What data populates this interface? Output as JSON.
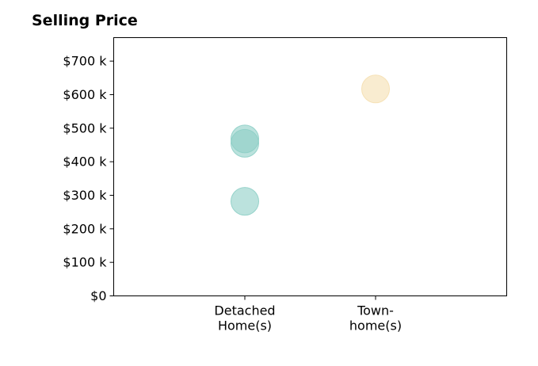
{
  "chart_data": {
    "type": "scatter",
    "title": "Selling Price",
    "categories": [
      "Detached\nHome(s)",
      "Town-\nhome(s)"
    ],
    "y_ticks": [
      {
        "value": 0,
        "label": "$0"
      },
      {
        "value": 100000,
        "label": "$100 k"
      },
      {
        "value": 200000,
        "label": "$200 k"
      },
      {
        "value": 300000,
        "label": "$300 k"
      },
      {
        "value": 400000,
        "label": "$400 k"
      },
      {
        "value": 500000,
        "label": "$500 k"
      },
      {
        "value": 600000,
        "label": "$600 k"
      },
      {
        "value": 700000,
        "label": "$700 k"
      }
    ],
    "ylim": [
      0,
      770000
    ],
    "points": [
      {
        "category": "Detached\nHome(s)",
        "y": 468000,
        "color": "#8ecfc6"
      },
      {
        "category": "Detached\nHome(s)",
        "y": 455000,
        "color": "#8ecfc6"
      },
      {
        "category": "Detached\nHome(s)",
        "y": 282000,
        "color": "#8ecfc6"
      },
      {
        "category": "Town-\nhome(s)",
        "y": 617000,
        "color": "#f5dfb0"
      }
    ],
    "grid": false,
    "legend": "none"
  }
}
